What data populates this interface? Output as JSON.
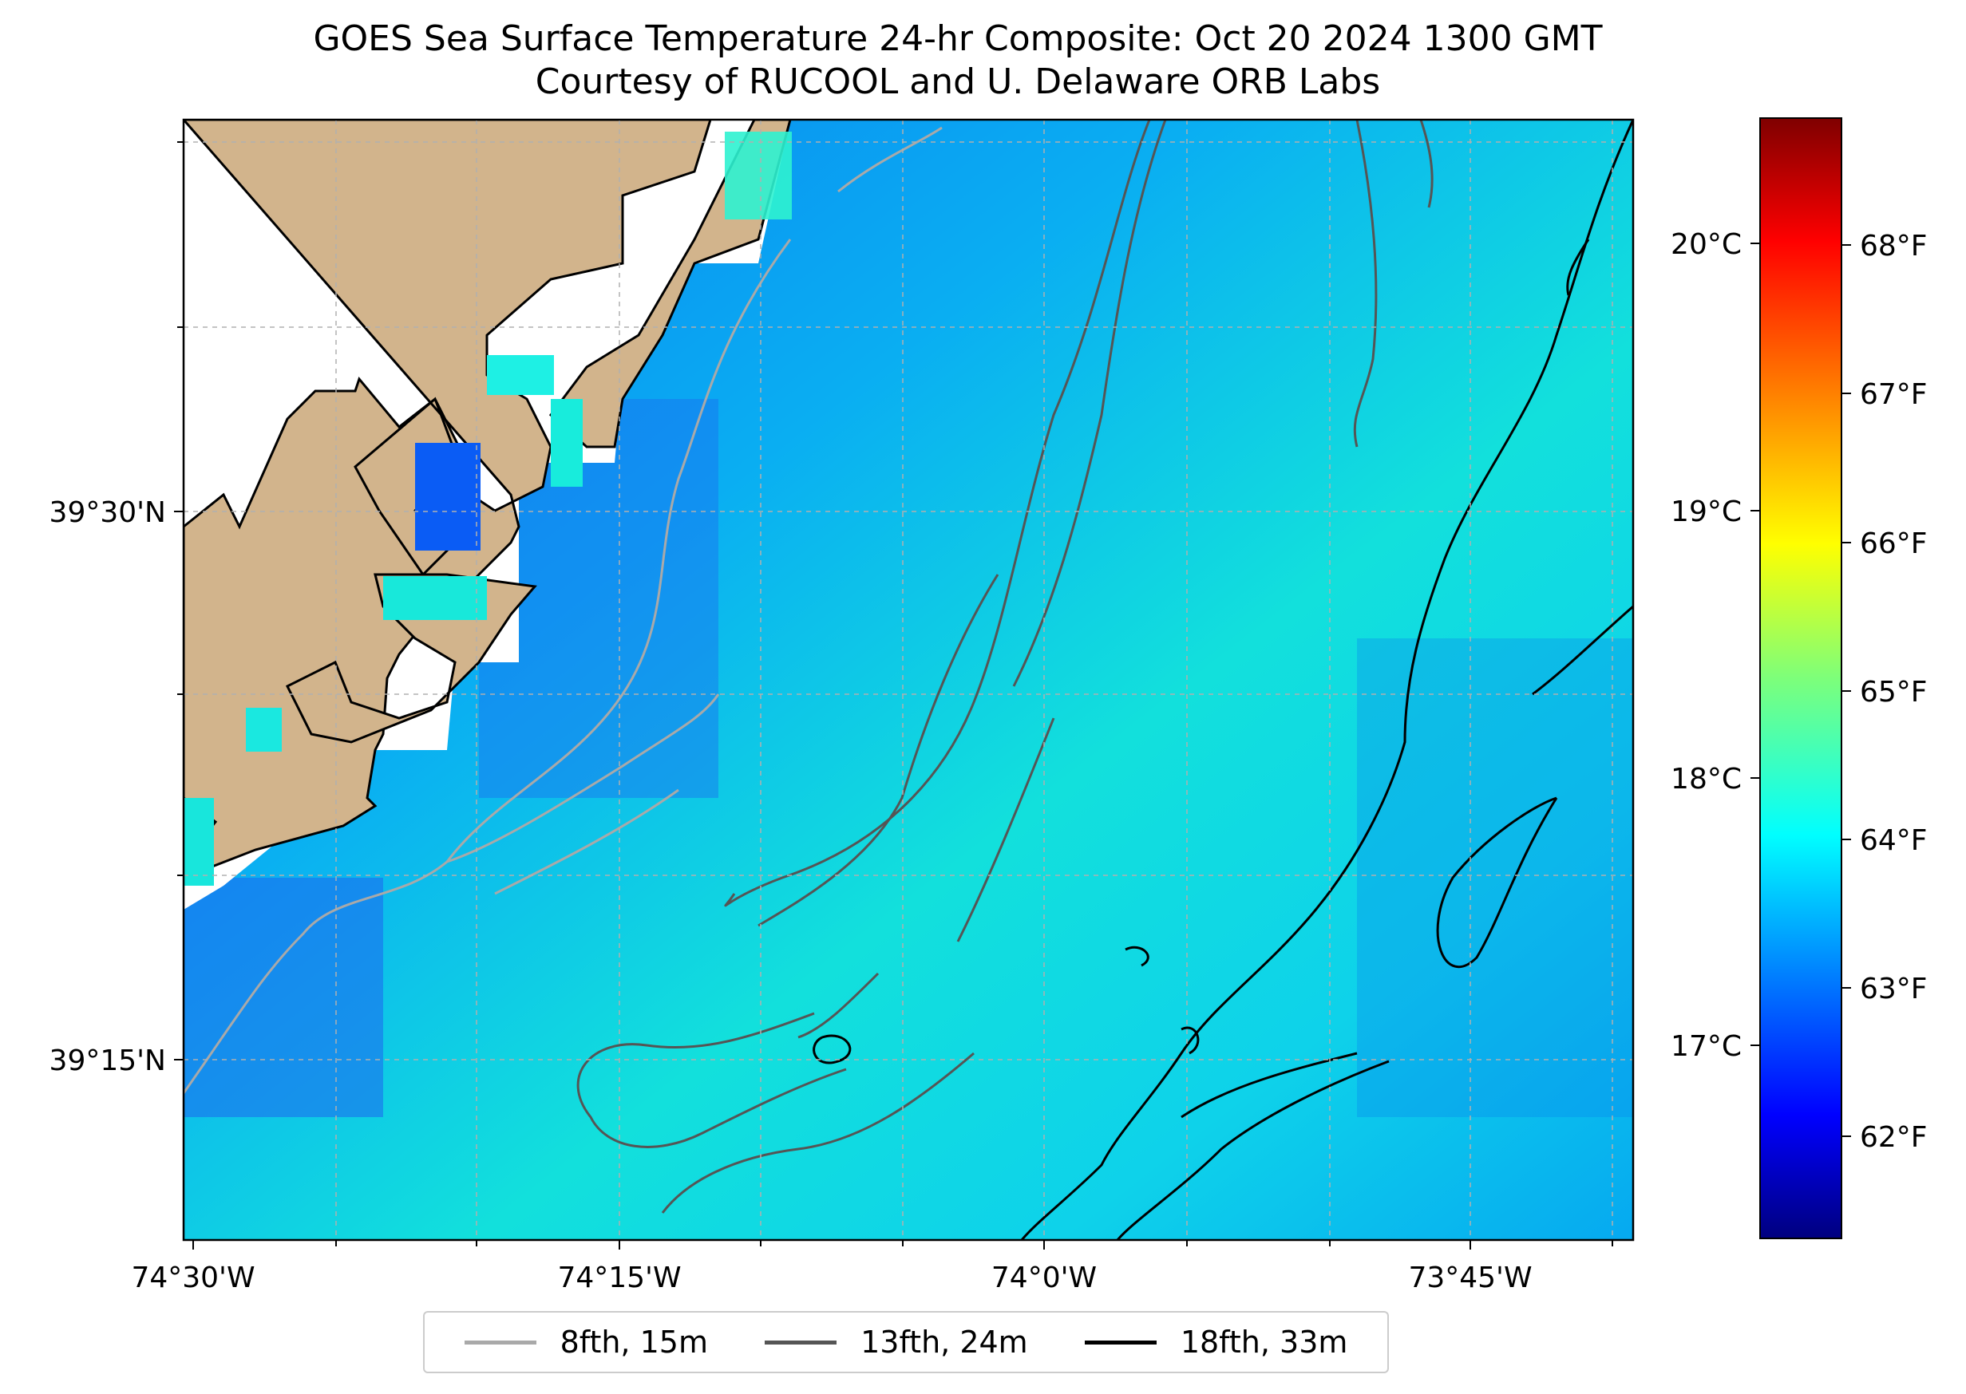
{
  "title": {
    "line1": "GOES Sea Surface Temperature 24-hr Composite: Oct 20 2024 1300 GMT",
    "line2": "Courtesy of RUCOOL and U. Delaware ORB Labs"
  },
  "map": {
    "x_ticks": [
      "74°30'W",
      "74°15'W",
      "74°0'W",
      "73°45'W"
    ],
    "y_ticks": [
      "39°30'N",
      "39°15'N"
    ],
    "colors": {
      "land": "#d2b48c",
      "no_data": "#ffffff",
      "grid": "#b0b0b0"
    }
  },
  "colorbar": {
    "celsius_ticks": [
      "20°C",
      "19°C",
      "18°C",
      "17°C"
    ],
    "fahrenheit_ticks": [
      "68°F",
      "67°F",
      "66°F",
      "65°F",
      "64°F",
      "63°F",
      "62°F"
    ],
    "colormap": "jet"
  },
  "legend": {
    "items": [
      {
        "label": "8fth, 15m",
        "color": "#a9a9a9"
      },
      {
        "label": "13fth, 24m",
        "color": "#555555"
      },
      {
        "label": "18fth, 33m",
        "color": "#000000"
      }
    ]
  }
}
